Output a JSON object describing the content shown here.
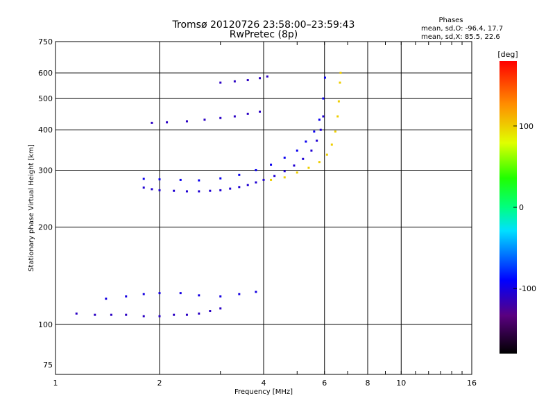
{
  "chart_data": {
    "type": "scatter",
    "title": "Tromsø 20120726 23:58:00–23:59:43",
    "subtitle": "RwPretec (8p)",
    "xlabel": "Frequency [MHz]",
    "ylabel": "Stationary phase Virtual Height [km]",
    "x_scale": "log",
    "y_scale": "log",
    "xlim": [
      1,
      16
    ],
    "ylim": [
      70,
      750
    ],
    "x_ticks": [
      "1",
      "2",
      "4",
      "6",
      "8",
      "10",
      "16"
    ],
    "y_ticks": [
      "75",
      "100",
      "200",
      "300",
      "400",
      "500",
      "600",
      "750"
    ],
    "grid": true,
    "stats": {
      "heading": "Phases",
      "line_o": "mean, sd,O: -96.4, 17.7",
      "line_x": "mean, sd,X:  85.5, 22.6"
    },
    "colorbar": {
      "label": "[deg]",
      "range": [
        -180,
        180
      ],
      "ticks": [
        "100",
        "0",
        "-100"
      ]
    },
    "traces": [
      {
        "name": "o_f_layer_lower",
        "phase": -105,
        "points": [
          [
            1.8,
            265
          ],
          [
            1.9,
            262
          ],
          [
            2.0,
            260
          ],
          [
            2.2,
            259
          ],
          [
            2.4,
            258
          ],
          [
            2.6,
            258
          ],
          [
            2.8,
            259
          ],
          [
            3.0,
            260
          ],
          [
            3.2,
            263
          ],
          [
            3.4,
            266
          ],
          [
            3.6,
            270
          ],
          [
            3.8,
            275
          ],
          [
            4.0,
            280
          ],
          [
            4.3,
            288
          ],
          [
            4.6,
            298
          ],
          [
            4.9,
            310
          ],
          [
            5.2,
            325
          ],
          [
            5.5,
            345
          ],
          [
            5.7,
            370
          ],
          [
            5.85,
            400
          ],
          [
            5.95,
            440
          ]
        ]
      },
      {
        "name": "o_f_layer_upper",
        "phase": -95,
        "points": [
          [
            1.8,
            282
          ],
          [
            2.0,
            281
          ],
          [
            2.3,
            280
          ],
          [
            2.6,
            279
          ],
          [
            3.0,
            283
          ],
          [
            3.4,
            290
          ],
          [
            3.8,
            300
          ],
          [
            4.2,
            312
          ],
          [
            4.6,
            328
          ],
          [
            5.0,
            345
          ],
          [
            5.3,
            368
          ],
          [
            5.6,
            395
          ],
          [
            5.8,
            430
          ],
          [
            5.95,
            500
          ],
          [
            6.02,
            580
          ]
        ]
      },
      {
        "name": "x_f_layer",
        "phase": 100,
        "points": [
          [
            4.2,
            280
          ],
          [
            4.6,
            285
          ],
          [
            5.0,
            295
          ],
          [
            5.4,
            305
          ],
          [
            5.8,
            318
          ],
          [
            6.1,
            335
          ],
          [
            6.3,
            360
          ],
          [
            6.45,
            395
          ],
          [
            6.55,
            440
          ],
          [
            6.6,
            490
          ],
          [
            6.65,
            560
          ],
          [
            6.68,
            600
          ]
        ]
      },
      {
        "name": "es_lower",
        "phase": -110,
        "points": [
          [
            1.15,
            108
          ],
          [
            1.3,
            107
          ],
          [
            1.45,
            107
          ],
          [
            1.6,
            107
          ],
          [
            1.8,
            106
          ],
          [
            2.0,
            106
          ],
          [
            2.2,
            107
          ],
          [
            2.4,
            107
          ],
          [
            2.6,
            108
          ],
          [
            2.8,
            110
          ],
          [
            3.0,
            112
          ]
        ]
      },
      {
        "name": "es_upper",
        "phase": -100,
        "points": [
          [
            1.4,
            120
          ],
          [
            1.6,
            122
          ],
          [
            1.8,
            124
          ],
          [
            2.0,
            125
          ],
          [
            2.3,
            125
          ],
          [
            2.6,
            123
          ],
          [
            3.0,
            122
          ],
          [
            3.4,
            124
          ],
          [
            3.8,
            126
          ]
        ]
      },
      {
        "name": "f_echo_430",
        "phase": -110,
        "points": [
          [
            1.9,
            420
          ],
          [
            2.1,
            422
          ],
          [
            2.4,
            425
          ],
          [
            2.7,
            430
          ],
          [
            3.0,
            435
          ],
          [
            3.3,
            440
          ],
          [
            3.6,
            448
          ],
          [
            3.9,
            455
          ]
        ]
      },
      {
        "name": "f_echo_570",
        "phase": -110,
        "points": [
          [
            3.0,
            560
          ],
          [
            3.3,
            565
          ],
          [
            3.6,
            570
          ],
          [
            3.9,
            578
          ],
          [
            4.1,
            585
          ]
        ]
      }
    ]
  }
}
